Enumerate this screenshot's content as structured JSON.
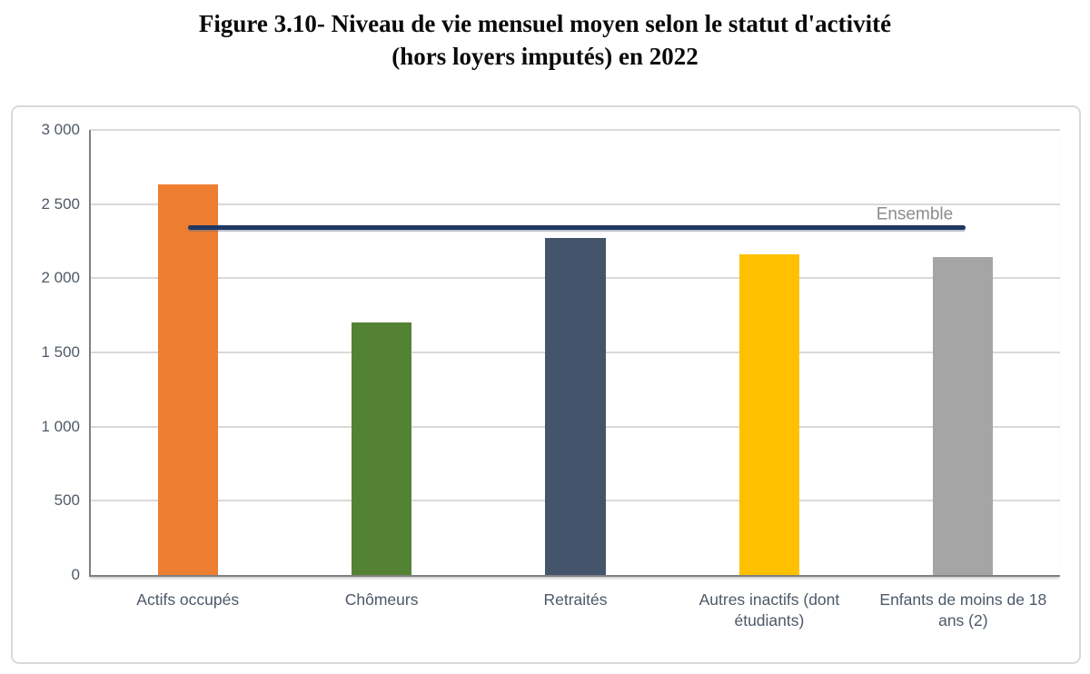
{
  "title": {
    "line1": "Figure 3.10- Niveau de vie mensuel moyen selon le statut d'activité",
    "line2": "(hors loyers imputés) en 2022"
  },
  "chart_data": {
    "type": "bar",
    "title": "Figure 3.10- Niveau de vie mensuel moyen selon le statut d'activité (hors loyers imputés) en 2022",
    "categories": [
      "Actifs occupés",
      "Chômeurs",
      "Retraités",
      "Autres inactifs (dont étudiants)",
      "Enfants de moins de 18 ans (2)"
    ],
    "values": [
      2630,
      1700,
      2270,
      2160,
      2140
    ],
    "bar_colors": [
      "#ED7D31",
      "#548235",
      "#44546A",
      "#FFC000",
      "#A5A5A5"
    ],
    "reference_line": {
      "label": "Ensemble",
      "value": 2340,
      "color": "#1F3864",
      "label_color": "#8C8C8C",
      "start_pct": 10.0,
      "end_pct": 90.3,
      "label_center_pct": 85.0
    },
    "xlabel": "",
    "ylabel": "",
    "ylim": [
      0,
      3000
    ],
    "grid": true,
    "legend": "none",
    "yticks": [
      {
        "value": 0,
        "label": "0"
      },
      {
        "value": 500,
        "label": "500"
      },
      {
        "value": 1000,
        "label": "1 000"
      },
      {
        "value": 1500,
        "label": "1 500"
      },
      {
        "value": 2000,
        "label": "2 000"
      },
      {
        "value": 2500,
        "label": "2 500"
      },
      {
        "value": 3000,
        "label": "3 000"
      }
    ],
    "colors": {
      "gridline": "#D9D9D9",
      "axis_line": "#808080",
      "tick_label": "#505A66",
      "category_label": "#4D5868",
      "frame_border": "#D9D9D9",
      "title_text": "#0a0a0a"
    }
  }
}
